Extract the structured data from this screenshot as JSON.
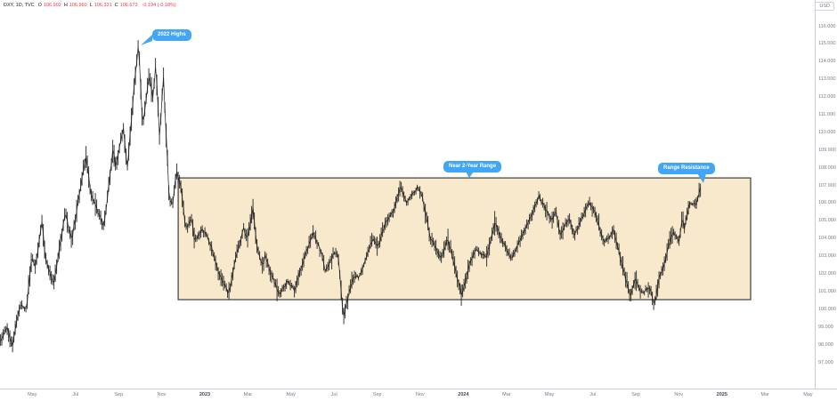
{
  "header": {
    "symbol": "DXY, 1D, TVC",
    "ohlc": [
      {
        "k": "O",
        "v": "106.902"
      },
      {
        "k": "H",
        "v": "106.960"
      },
      {
        "k": "L",
        "v": "106.331"
      },
      {
        "k": "C",
        "v": "106.673"
      }
    ],
    "change": "-0.194 (-0.18%)"
  },
  "price_axis": {
    "currency": "USD",
    "max": 116,
    "min": 97,
    "step": 1,
    "labels": [
      "116.000",
      "115.000",
      "114.000",
      "113.000",
      "112.000",
      "111.000",
      "110.000",
      "109.000",
      "108.000",
      "107.000",
      "106.000",
      "105.000",
      "104.000",
      "103.000",
      "102.000",
      "101.000",
      "100.000",
      "99.000",
      "98.000",
      "97.000"
    ]
  },
  "time_axis": {
    "labels": [
      {
        "text": "May",
        "t": 2022.333
      },
      {
        "text": "Jul",
        "t": 2022.5
      },
      {
        "text": "Sep",
        "t": 2022.667
      },
      {
        "text": "Nov",
        "t": 2022.833
      },
      {
        "text": "2023",
        "t": 2023.0,
        "year": true
      },
      {
        "text": "Mar",
        "t": 2023.167
      },
      {
        "text": "May",
        "t": 2023.333
      },
      {
        "text": "Jul",
        "t": 2023.5
      },
      {
        "text": "Sep",
        "t": 2023.667
      },
      {
        "text": "Nov",
        "t": 2023.833
      },
      {
        "text": "2024",
        "t": 2024.0,
        "year": true
      },
      {
        "text": "Mar",
        "t": 2024.167
      },
      {
        "text": "May",
        "t": 2024.333
      },
      {
        "text": "Jul",
        "t": 2024.5
      },
      {
        "text": "Sep",
        "t": 2024.667
      },
      {
        "text": "Nov",
        "t": 2024.833
      },
      {
        "text": "2025",
        "t": 2025.0,
        "year": true
      },
      {
        "text": "Mar",
        "t": 2025.167
      },
      {
        "text": "May",
        "t": 2025.333
      }
    ]
  },
  "chart_data": {
    "type": "candlestick",
    "title": "DXY US Dollar Index, 1D, TVC",
    "ylabel": "USD",
    "ylim": [
      96.5,
      116.5
    ],
    "xlim_years": [
      2022.2,
      2025.42
    ],
    "grid": false,
    "annotations": [
      {
        "text": "2022 Highs",
        "target": "September 2022 peak ~114.8"
      },
      {
        "text": "Near 2-Year Range",
        "target": "top of range box"
      },
      {
        "text": "Range Resistance",
        "target": "current price at range top"
      }
    ],
    "range_box": {
      "t_start": 2022.897,
      "t_end": 2025.111,
      "price_top": 107.45,
      "price_bottom": 100.57
    },
    "price_path": [
      [
        2022.21,
        98.2
      ],
      [
        2022.235,
        99.0
      ],
      [
        2022.255,
        97.9
      ],
      [
        2022.285,
        100.3
      ],
      [
        2022.31,
        100.0
      ],
      [
        2022.33,
        103.0
      ],
      [
        2022.345,
        102.4
      ],
      [
        2022.37,
        104.9
      ],
      [
        2022.385,
        102.8
      ],
      [
        2022.415,
        101.4
      ],
      [
        2022.46,
        105.5
      ],
      [
        2022.485,
        103.9
      ],
      [
        2022.52,
        107.0
      ],
      [
        2022.54,
        108.7
      ],
      [
        2022.56,
        106.5
      ],
      [
        2022.585,
        105.6
      ],
      [
        2022.61,
        104.7
      ],
      [
        2022.645,
        109.1
      ],
      [
        2022.655,
        108.1
      ],
      [
        2022.685,
        110.3
      ],
      [
        2022.7,
        108.0
      ],
      [
        2022.73,
        113.2
      ],
      [
        2022.744,
        115.0
      ],
      [
        2022.76,
        110.3
      ],
      [
        2022.785,
        113.3
      ],
      [
        2022.8,
        111.9
      ],
      [
        2022.81,
        113.9
      ],
      [
        2022.825,
        109.8
      ],
      [
        2022.84,
        113.1
      ],
      [
        2022.862,
        106.4
      ],
      [
        2022.875,
        105.9
      ],
      [
        2022.89,
        107.9
      ],
      [
        2022.91,
        106.7
      ],
      [
        2022.925,
        104.6
      ],
      [
        2022.95,
        105.2
      ],
      [
        2022.96,
        103.9
      ],
      [
        2022.99,
        104.6
      ],
      [
        2023.02,
        103.8
      ],
      [
        2023.05,
        102.3
      ],
      [
        2023.07,
        101.6
      ],
      [
        2023.092,
        100.9
      ],
      [
        2023.125,
        103.2
      ],
      [
        2023.15,
        104.6
      ],
      [
        2023.165,
        104.0
      ],
      [
        2023.186,
        105.7
      ],
      [
        2023.2,
        103.7
      ],
      [
        2023.225,
        102.4
      ],
      [
        2023.232,
        103.1
      ],
      [
        2023.26,
        101.9
      ],
      [
        2023.287,
        100.9
      ],
      [
        2023.32,
        101.6
      ],
      [
        2023.345,
        101.1
      ],
      [
        2023.38,
        102.7
      ],
      [
        2023.419,
        104.3
      ],
      [
        2023.45,
        103.3
      ],
      [
        2023.465,
        102.2
      ],
      [
        2023.5,
        103.2
      ],
      [
        2023.515,
        103.1
      ],
      [
        2023.536,
        99.6
      ],
      [
        2023.572,
        101.8
      ],
      [
        2023.6,
        101.9
      ],
      [
        2023.65,
        104.1
      ],
      [
        2023.67,
        103.5
      ],
      [
        2023.7,
        105.0
      ],
      [
        2023.73,
        105.6
      ],
      [
        2023.756,
        107.0
      ],
      [
        2023.78,
        106.1
      ],
      [
        2023.82,
        106.9
      ],
      [
        2023.84,
        106.5
      ],
      [
        2023.872,
        104.1
      ],
      [
        2023.892,
        103.5
      ],
      [
        2023.914,
        102.9
      ],
      [
        2023.94,
        104.0
      ],
      [
        2023.994,
        100.8
      ],
      [
        2024.02,
        102.4
      ],
      [
        2024.045,
        103.4
      ],
      [
        2024.09,
        103.0
      ],
      [
        2024.122,
        104.9
      ],
      [
        2024.15,
        103.9
      ],
      [
        2024.186,
        102.8
      ],
      [
        2024.222,
        104.0
      ],
      [
        2024.25,
        104.9
      ],
      [
        2024.292,
        106.4
      ],
      [
        2024.32,
        105.6
      ],
      [
        2024.342,
        105.0
      ],
      [
        2024.356,
        105.6
      ],
      [
        2024.375,
        104.3
      ],
      [
        2024.41,
        105.1
      ],
      [
        2024.428,
        104.2
      ],
      [
        2024.486,
        106.1
      ],
      [
        2024.51,
        105.4
      ],
      [
        2024.544,
        103.8
      ],
      [
        2024.58,
        104.5
      ],
      [
        2024.645,
        100.7
      ],
      [
        2024.664,
        101.7
      ],
      [
        2024.69,
        100.9
      ],
      [
        2024.72,
        101.3
      ],
      [
        2024.739,
        100.2
      ],
      [
        2024.758,
        102.0
      ],
      [
        2024.775,
        102.5
      ],
      [
        2024.794,
        103.6
      ],
      [
        2024.81,
        104.4
      ],
      [
        2024.835,
        103.9
      ],
      [
        2024.848,
        105.3
      ],
      [
        2024.855,
        104.6
      ],
      [
        2024.875,
        106.0
      ],
      [
        2024.9,
        105.9
      ],
      [
        2024.918,
        107.0
      ]
    ]
  },
  "colors": {
    "candle": "#1d1d1d",
    "box_fill": "#f8e9cd",
    "box_border": "#3c3c3c",
    "callout": "#41a6f5",
    "axis_text": "#787b86",
    "down_red": "#f23645",
    "axis_line": "#c9ccd4",
    "background": "#ffffff"
  }
}
